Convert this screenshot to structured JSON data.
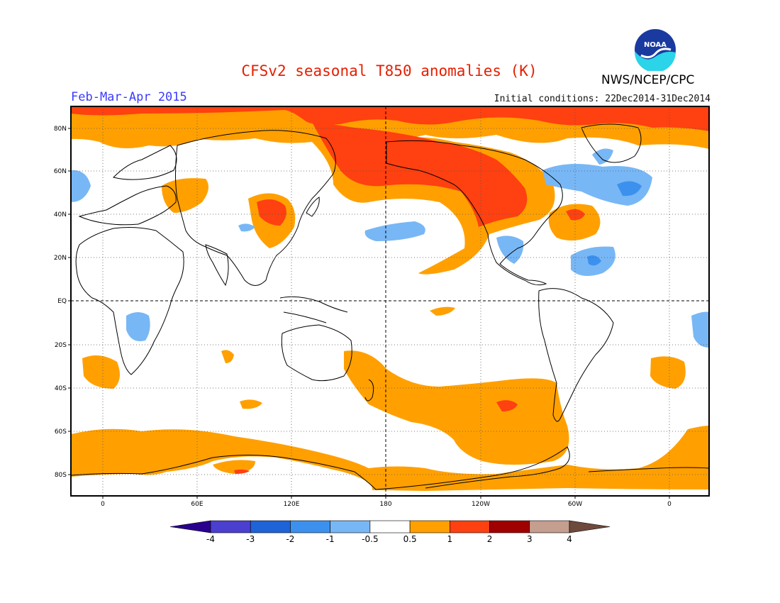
{
  "title": "CFSv2 seasonal T850 anomalies (K)",
  "period": "Feb-Mar-Apr 2015",
  "initial_conditions": "Initial conditions: 22Dec2014-31Dec2014",
  "agency": "NWS/NCEP/CPC",
  "logo_text": "NOAA",
  "map": {
    "lat_labels": [
      "80N",
      "60N",
      "40N",
      "20N",
      "EQ",
      "20S",
      "40S",
      "60S",
      "80S"
    ],
    "lon_labels": [
      "0",
      "60E",
      "120E",
      "180",
      "120W",
      "60W",
      "0"
    ]
  },
  "colorbar": {
    "labels": [
      "-4",
      "-3",
      "-2",
      "-1",
      "-0.5",
      "0.5",
      "1",
      "2",
      "3",
      "4"
    ],
    "colors": [
      "#2a008f",
      "#4b3fd0",
      "#1e64d8",
      "#3c91ee",
      "#78b7f5",
      "#ffffff",
      "#ffa000",
      "#ff4010",
      "#a00000",
      "#c49e8e",
      "#6e4a3c"
    ]
  },
  "colors": {
    "orange": "#ffa000",
    "red": "#ff4010",
    "lightblue": "#78b7f5",
    "blue": "#3c91ee"
  }
}
